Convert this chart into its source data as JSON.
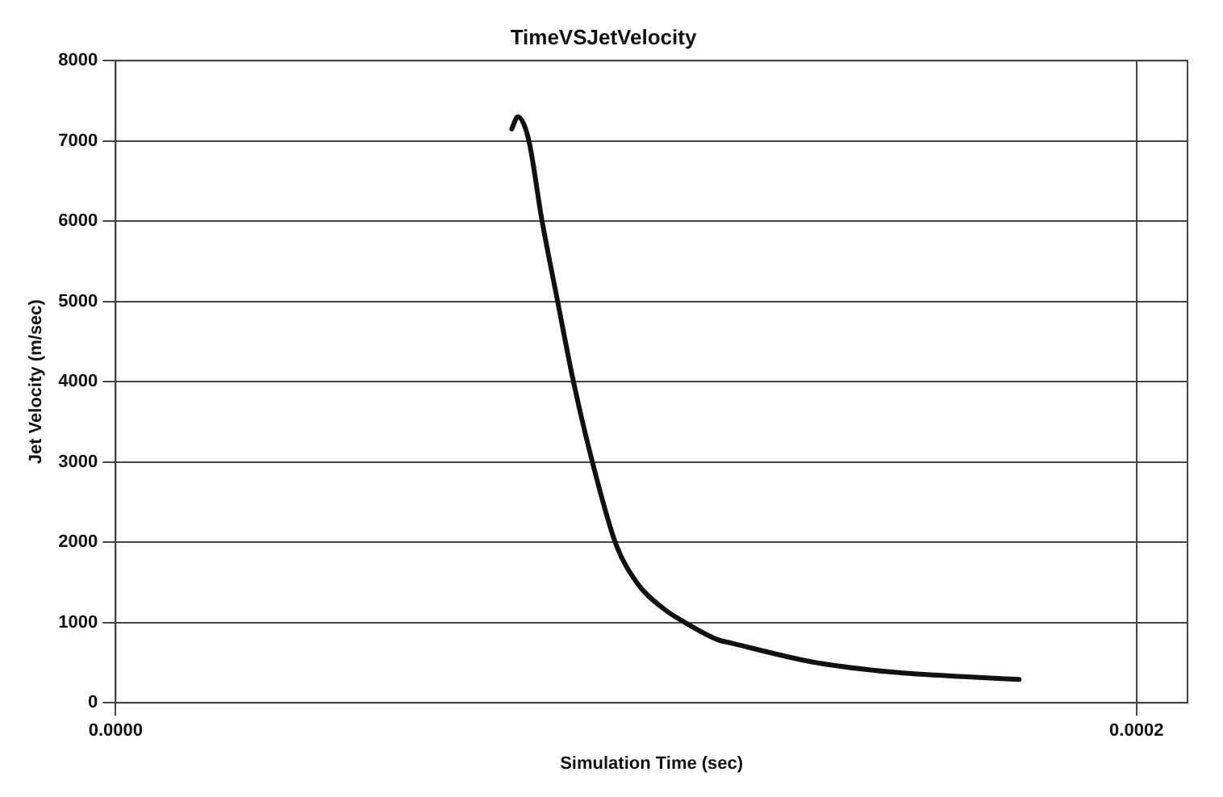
{
  "chart_data": {
    "type": "line",
    "title": "TimeVSJetVelocity",
    "xlabel": "Simulation Time (sec)",
    "ylabel": "Jet Velocity (m/sec)",
    "series": [
      {
        "color": "#111111",
        "x": [
          7.76e-05,
          7.88e-05,
          8.09e-05,
          8.35e-05,
          8.66e-05,
          8.97e-05,
          9.34e-05,
          9.8e-05,
          0.0001022,
          0.0001074,
          0.0001105,
          0.0001178,
          0.0001209,
          0.0001364,
          0.000152,
          0.0001676,
          0.000177
        ],
        "values": [
          7150,
          7300,
          7020,
          6020,
          5000,
          4000,
          3000,
          1980,
          1490,
          1170,
          1040,
          790,
          740,
          510,
          383,
          320,
          290
        ]
      }
    ],
    "xlim": [
      0,
      0.00021
    ],
    "xticks": [
      {
        "value": 0,
        "label": "0.0000"
      },
      {
        "value": 0.0002,
        "label": "0.0002"
      }
    ],
    "ylim": [
      0,
      8000
    ],
    "yticks": [
      0,
      1000,
      2000,
      3000,
      4000,
      5000,
      6000,
      7000,
      8000
    ],
    "grid": true,
    "legend": false,
    "marker": "none",
    "line_style": "solid"
  }
}
